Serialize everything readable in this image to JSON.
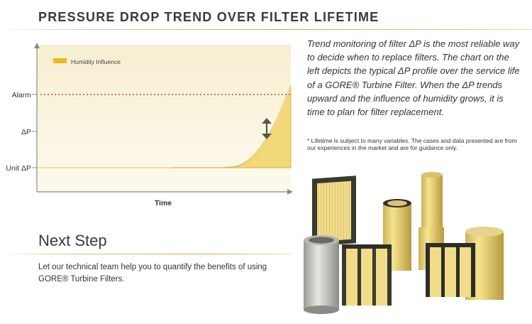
{
  "header": {
    "title": "PRESSURE DROP TREND OVER FILTER LIFETIME"
  },
  "colors": {
    "accent": "#e8b923",
    "accent_dark": "#d9a31c",
    "accent_light": "#f7e28b",
    "alarm_line": "#e04030",
    "chart_bg": "#fbf7e6",
    "axis": "#888888"
  },
  "chart_data": {
    "type": "area",
    "title": "",
    "xlabel": "Time",
    "ylabel": "",
    "y_markers": [
      "Alarm",
      "ΔP",
      "Unit ΔP"
    ],
    "legend": {
      "label": "Humidity Influence",
      "placement": "top-left"
    },
    "grid": false,
    "x": [
      0,
      0.1,
      0.2,
      0.3,
      0.4,
      0.5,
      0.55,
      0.6,
      0.65,
      0.7,
      0.75,
      0.8,
      0.85,
      0.9,
      0.95,
      1.0
    ],
    "series": [
      {
        "values": [
          0,
          0,
          0,
          0,
          0,
          0.01,
          0.02,
          0.05,
          0.1,
          0.17,
          0.26,
          0.37,
          0.5,
          0.65,
          0.82,
          1.0
        ]
      },
      {
        "values": [
          0,
          0,
          0,
          0,
          0,
          0,
          0.01,
          0.03,
          0.06,
          0.11,
          0.17,
          0.25,
          0.34,
          0.45,
          0.58,
          0.72
        ]
      }
    ],
    "alarm_level": 0.9,
    "annotation": "double-headed arrow indicating humidity influence"
  },
  "description": {
    "text": "Trend monitoring of filter ΔP is the most reliable way to decide when to replace filters. The chart on the left depicts the typical ΔP profile over the service life of a GORE® Turbine Filter. When the ΔP trends upward and the influence of humidity grows, it is time to plan for filter replacement.",
    "footnote": "* Lifetime is subject to many variables. The cases and data presented are from our experiences in the market and are for guidance only."
  },
  "next_step": {
    "heading": "Next Step",
    "body": "Let our technical team help you to quantify the benefits of using GORE® Turbine Filters."
  },
  "image": {
    "icon": "turbine-filters-photo"
  }
}
